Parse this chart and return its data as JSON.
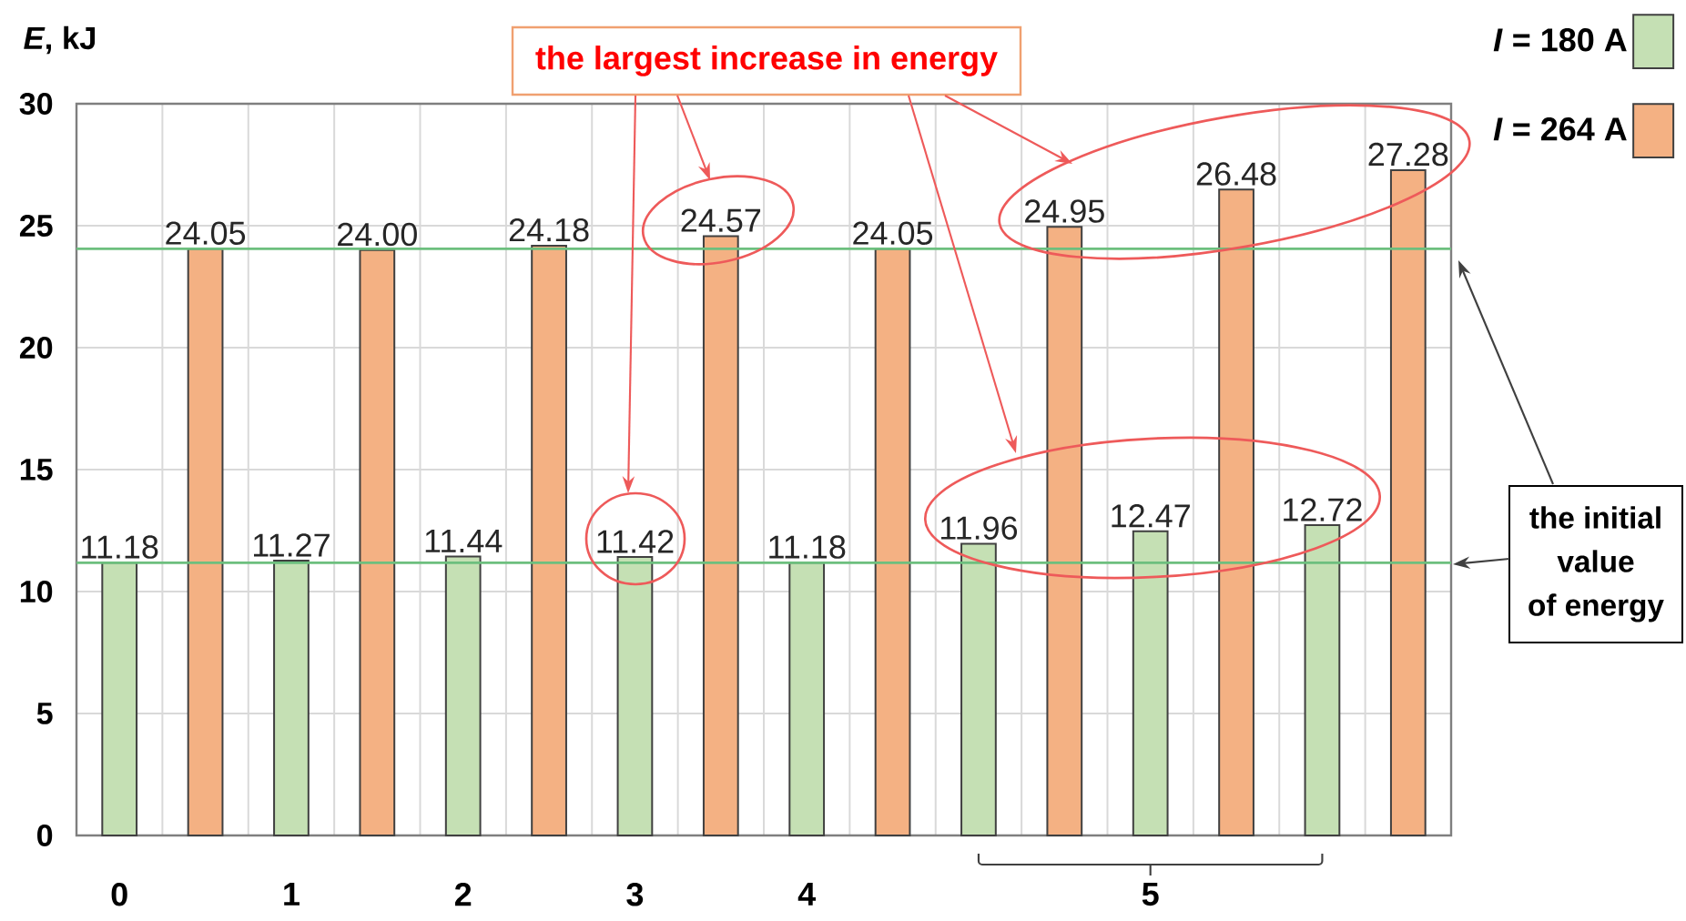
{
  "chart_data": {
    "type": "bar",
    "ylabel": "*E*, kJ",
    "categories": [
      "0",
      "1",
      "2",
      "3",
      "4",
      null,
      "5",
      null
    ],
    "series": [
      {
        "name": "*I* = 180 A",
        "color": "#c5e0b4",
        "values": [
          11.18,
          11.27,
          11.44,
          11.42,
          11.18,
          11.96,
          12.47,
          12.72
        ],
        "value_labels": [
          "11.18",
          "11.27",
          "11.44",
          "11.42",
          "11.18",
          "11.96",
          "12.47",
          "12.72"
        ]
      },
      {
        "name": "*I* = 264 A",
        "color": "#f4b183",
        "values": [
          24.05,
          24.0,
          24.18,
          24.57,
          24.05,
          24.95,
          26.48,
          27.28
        ],
        "value_labels": [
          "24.05",
          "24.00",
          "24.18",
          "24.57",
          "24.05",
          "24.95",
          "26.48",
          "27.28"
        ]
      }
    ],
    "ylim": [
      0,
      30
    ],
    "yticks": [
      0,
      5,
      10,
      15,
      20,
      25,
      30
    ],
    "grid": true,
    "legend": "top right",
    "ref_lines": [
      {
        "axis": "y",
        "value": 24.05,
        "color": "#6dbf7e"
      },
      {
        "axis": "y",
        "value": 11.18,
        "color": "#6dbf7e"
      }
    ],
    "annotations": [
      "the largest increase in energy",
      "the initial value of energy"
    ]
  }
}
